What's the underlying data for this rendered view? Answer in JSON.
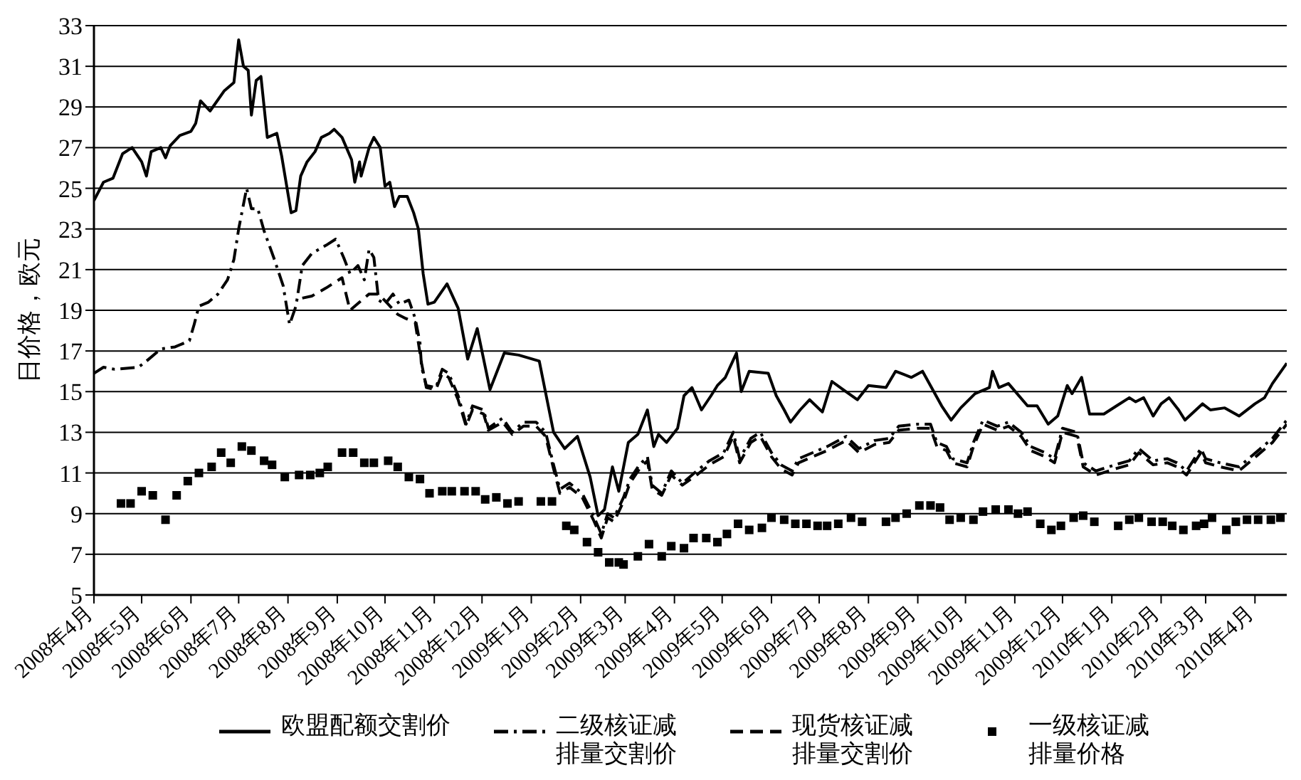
{
  "chart_data": {
    "type": "line",
    "ylabel": "日价格，欧元",
    "xlim": [
      "2008-04-01",
      "2010-04-21"
    ],
    "xticks": [
      {
        "value": "2008-04",
        "label": "2008年4月"
      },
      {
        "value": "2008-05",
        "label": "2008年5月"
      },
      {
        "value": "2008-06",
        "label": "2008年6月"
      },
      {
        "value": "2008-07",
        "label": "2008年7月"
      },
      {
        "value": "2008-08",
        "label": "2008年8月"
      },
      {
        "value": "2008-09",
        "label": "2008年9月"
      },
      {
        "value": "2008-10",
        "label": "2008年10月"
      },
      {
        "value": "2008-11",
        "label": "2008年11月"
      },
      {
        "value": "2008-12",
        "label": "2008年12月"
      },
      {
        "value": "2009-01",
        "label": "2009年1月"
      },
      {
        "value": "2009-02",
        "label": "2009年2月"
      },
      {
        "value": "2009-03",
        "label": "2009年3月"
      },
      {
        "value": "2009-04",
        "label": "2009年4月"
      },
      {
        "value": "2009-05",
        "label": "2009年5月"
      },
      {
        "value": "2009-06",
        "label": "2009年6月"
      },
      {
        "value": "2009-07",
        "label": "2009年7月"
      },
      {
        "value": "2009-08",
        "label": "2009年8月"
      },
      {
        "value": "2009-09",
        "label": "2009年9月"
      },
      {
        "value": "2009-10",
        "label": "2009年10月"
      },
      {
        "value": "2009-11",
        "label": "2009年11月"
      },
      {
        "value": "2009-12",
        "label": "2009年12月"
      },
      {
        "value": "2010-01",
        "label": "2010年1月"
      },
      {
        "value": "2010-02",
        "label": "2010年2月"
      },
      {
        "value": "2010-03",
        "label": "2010年3月"
      },
      {
        "value": "2010-04",
        "label": "2010年4月"
      }
    ],
    "ylim": [
      5,
      33
    ],
    "yticks": [
      5,
      7,
      9,
      11,
      13,
      15,
      17,
      19,
      21,
      23,
      25,
      27,
      29,
      31,
      33
    ],
    "grid": "y",
    "legend": "bottom",
    "series": [
      {
        "name": "欧盟配额交割价",
        "line_style": "solid",
        "color": "#000000",
        "x": [
          "2008-04-01",
          "2008-04-07",
          "2008-04-13",
          "2008-04-19",
          "2008-04-25",
          "2008-05-01",
          "2008-05-04",
          "2008-05-07",
          "2008-05-13",
          "2008-05-16",
          "2008-05-19",
          "2008-05-25",
          "2008-06-01",
          "2008-06-04",
          "2008-06-07",
          "2008-06-13",
          "2008-06-22",
          "2008-06-28",
          "2008-07-01",
          "2008-07-04",
          "2008-07-07",
          "2008-07-09",
          "2008-07-12",
          "2008-07-15",
          "2008-07-19",
          "2008-07-25",
          "2008-07-28",
          "2008-08-03",
          "2008-08-06",
          "2008-08-09",
          "2008-08-13",
          "2008-08-18",
          "2008-08-22",
          "2008-08-27",
          "2008-08-30",
          "2008-09-04",
          "2008-09-10",
          "2008-09-12",
          "2008-09-15",
          "2008-09-16",
          "2008-09-21",
          "2008-09-24",
          "2008-09-28",
          "2008-10-01",
          "2008-10-04",
          "2008-10-07",
          "2008-10-10",
          "2008-10-15",
          "2008-10-19",
          "2008-10-22",
          "2008-10-25",
          "2008-10-28",
          "2008-11-01",
          "2008-11-09",
          "2008-11-16",
          "2008-11-22",
          "2008-11-28",
          "2008-12-06",
          "2008-12-15",
          "2008-12-24",
          "2009-01-06",
          "2009-01-15",
          "2009-01-22",
          "2009-01-30",
          "2009-02-07",
          "2009-02-12",
          "2009-02-16",
          "2009-02-21",
          "2009-02-25",
          "2009-03-03",
          "2009-03-09",
          "2009-03-15",
          "2009-03-19",
          "2009-03-22",
          "2009-03-27",
          "2009-04-03",
          "2009-04-07",
          "2009-04-12",
          "2009-04-18",
          "2009-04-24",
          "2009-04-28",
          "2009-05-03",
          "2009-05-10",
          "2009-05-13",
          "2009-05-18",
          "2009-05-30",
          "2009-06-04",
          "2009-06-09",
          "2009-06-13",
          "2009-06-19",
          "2009-06-25",
          "2009-07-03",
          "2009-07-09",
          "2009-07-16",
          "2009-07-25",
          "2009-08-01",
          "2009-08-12",
          "2009-08-18",
          "2009-08-28",
          "2009-09-04",
          "2009-09-16",
          "2009-09-22",
          "2009-09-28",
          "2009-10-07",
          "2009-10-16",
          "2009-10-18",
          "2009-10-22",
          "2009-10-28",
          "2009-11-09",
          "2009-11-15",
          "2009-11-22",
          "2009-11-28",
          "2009-12-04",
          "2009-12-07",
          "2009-12-13",
          "2009-12-18",
          "2009-12-27",
          "2010-01-04",
          "2010-01-12",
          "2010-01-16",
          "2010-01-21",
          "2010-01-27",
          "2010-02-01",
          "2010-02-06",
          "2010-02-12",
          "2010-02-16",
          "2010-02-27",
          "2010-03-04",
          "2010-03-13",
          "2010-03-22",
          "2010-04-01",
          "2010-04-07",
          "2010-04-12",
          "2010-04-21"
        ],
        "values": [
          24.4,
          25.3,
          25.5,
          26.7,
          27,
          26.3,
          25.6,
          26.8,
          27,
          26.5,
          27.1,
          27.6,
          27.8,
          28.2,
          29.3,
          28.8,
          29.8,
          30.2,
          32.3,
          31,
          30.8,
          28.6,
          30.3,
          30.5,
          27.5,
          27.7,
          26.6,
          23.8,
          23.9,
          25.6,
          26.3,
          26.8,
          27.5,
          27.7,
          27.9,
          27.5,
          26.4,
          25.3,
          26.3,
          25.6,
          27,
          27.5,
          27,
          25.1,
          25.3,
          24.1,
          24.6,
          24.6,
          23.8,
          23,
          20.8,
          19.3,
          19.4,
          20.3,
          19.1,
          16.6,
          18.1,
          15.1,
          16.9,
          16.8,
          16.5,
          13,
          12.2,
          12.8,
          10.8,
          8.9,
          9.2,
          11.3,
          10.1,
          12.5,
          12.9,
          14.1,
          12.3,
          12.9,
          12.5,
          13.2,
          14.8,
          15.2,
          14.1,
          14.8,
          15.3,
          15.7,
          16.9,
          15,
          16,
          15.9,
          14.8,
          14.1,
          13.5,
          14.1,
          14.6,
          14,
          15.5,
          15.1,
          14.6,
          15.3,
          15.2,
          16,
          15.7,
          16,
          14.3,
          13.6,
          14.2,
          14.9,
          15.2,
          16,
          15.2,
          15.4,
          14.3,
          14.3,
          13.4,
          13.8,
          15.3,
          14.9,
          15.7,
          13.9,
          13.9,
          14.3,
          14.7,
          14.5,
          14.7,
          13.8,
          14.4,
          14.7,
          14.1,
          13.6,
          14.4,
          14.1,
          14.2,
          13.8,
          14.4,
          14.7,
          15.4,
          16.4
        ]
      },
      {
        "name": "二级核证减排量交割价",
        "line_style": "dashdot",
        "color": "#000000",
        "x": [
          "2008-04-01",
          "2008-04-07",
          "2008-04-14",
          "2008-04-29",
          "2008-05-04",
          "2008-05-13",
          "2008-05-22",
          "2008-05-31",
          "2008-06-03",
          "2008-06-06",
          "2008-06-12",
          "2008-06-18",
          "2008-06-24",
          "2008-06-28",
          "2008-07-01",
          "2008-07-06",
          "2008-07-09",
          "2008-07-13",
          "2008-07-17",
          "2008-07-23",
          "2008-07-29",
          "2008-08-02",
          "2008-08-06",
          "2008-08-10",
          "2008-08-16",
          "2008-08-25",
          "2008-08-31",
          "2008-09-05",
          "2008-09-09",
          "2008-09-14",
          "2008-09-18",
          "2008-09-21",
          "2008-09-24",
          "2008-09-27",
          "2008-10-01",
          "2008-10-06",
          "2008-10-10",
          "2008-10-16",
          "2008-10-20",
          "2008-10-23",
          "2008-10-24",
          "2008-10-27",
          "2008-11-02",
          "2008-11-06",
          "2008-11-10",
          "2008-11-16",
          "2008-11-21",
          "2008-11-25",
          "2008-12-02",
          "2008-12-05",
          "2008-12-14",
          "2008-12-20",
          "2008-12-27",
          "2009-01-04",
          "2009-01-10",
          "2009-01-15",
          "2009-01-19",
          "2009-01-25",
          "2009-02-02",
          "2009-02-09",
          "2009-02-14",
          "2009-02-18",
          "2009-02-22",
          "2009-02-28",
          "2009-03-04",
          "2009-03-10",
          "2009-03-15",
          "2009-03-18",
          "2009-03-24",
          "2009-03-30",
          "2009-04-06",
          "2009-04-15",
          "2009-04-23",
          "2009-05-02",
          "2009-05-08",
          "2009-05-12",
          "2009-05-19",
          "2009-05-25",
          "2009-06-01",
          "2009-06-07",
          "2009-06-14",
          "2009-06-18",
          "2009-06-27",
          "2009-07-06",
          "2009-07-18",
          "2009-07-26",
          "2009-08-05",
          "2009-08-14",
          "2009-08-20",
          "2009-09-01",
          "2009-09-09",
          "2009-09-13",
          "2009-09-19",
          "2009-09-23",
          "2009-10-02",
          "2009-10-06",
          "2009-10-12",
          "2009-10-21",
          "2009-10-28",
          "2009-11-05",
          "2009-11-11",
          "2009-11-20",
          "2009-11-26",
          "2009-12-01",
          "2009-12-10",
          "2009-12-14",
          "2009-12-22",
          "2010-01-03",
          "2010-01-12",
          "2010-01-18",
          "2010-01-27",
          "2010-02-05",
          "2010-02-11",
          "2010-02-17",
          "2010-02-26",
          "2010-03-01",
          "2010-03-10",
          "2010-03-22",
          "2010-04-03",
          "2010-04-12",
          "2010-04-21"
        ],
        "values": [
          15.9,
          16.2,
          16.1,
          16.2,
          16.5,
          17.1,
          17.2,
          17.5,
          18.3,
          19.2,
          19.4,
          19.8,
          20.5,
          21.5,
          23,
          25,
          24,
          24,
          22.9,
          21.6,
          20.2,
          18.3,
          19.2,
          21.2,
          21.8,
          22.2,
          22.5,
          21.6,
          20.8,
          21.2,
          20.5,
          22,
          21.6,
          19.5,
          19.3,
          19.8,
          19.3,
          19.5,
          18.6,
          17.4,
          16.2,
          15.3,
          15.2,
          16.1,
          15.9,
          14.8,
          13.4,
          14.3,
          14.1,
          13.2,
          13.7,
          13,
          13.5,
          13.5,
          13,
          11.4,
          10.2,
          10.5,
          10,
          8.9,
          8,
          9,
          8.8,
          9.8,
          10.7,
          11.4,
          11.8,
          10.4,
          10,
          11.1,
          10.5,
          11.1,
          11.6,
          12,
          13,
          11.7,
          12.7,
          13,
          12,
          11.4,
          11.1,
          11.7,
          12,
          12.3,
          12.8,
          12.2,
          12.6,
          12.7,
          13.3,
          13.4,
          13.4,
          12.5,
          12.3,
          11.7,
          11.5,
          12.5,
          13.6,
          13.3,
          13.5,
          13,
          12.3,
          12,
          11.7,
          13.2,
          13,
          11.5,
          11.1,
          11.4,
          11.6,
          12.2,
          11.6,
          11.7,
          11.5,
          11.1,
          12.2,
          11.7,
          11.5,
          11.3,
          12.1,
          12.7,
          13.6
        ]
      },
      {
        "name": "现货核证减排量交割价",
        "line_style": "dashed",
        "color": "#000000",
        "x": [
          "2008-08-10",
          "2008-08-16",
          "2008-08-25",
          "2008-09-04",
          "2008-09-09",
          "2008-09-15",
          "2008-09-21",
          "2008-09-27",
          "2008-10-03",
          "2008-10-09",
          "2008-10-14",
          "2008-10-20",
          "2008-10-24",
          "2008-10-27",
          "2008-11-02",
          "2008-11-06",
          "2008-11-10",
          "2008-11-16",
          "2008-11-21",
          "2008-11-25",
          "2008-12-02",
          "2008-12-05",
          "2008-12-14",
          "2008-12-20",
          "2008-12-27",
          "2009-01-04",
          "2009-01-10",
          "2009-01-15",
          "2009-01-19",
          "2009-01-25",
          "2009-02-02",
          "2009-02-09",
          "2009-02-14",
          "2009-02-18",
          "2009-02-22",
          "2009-02-28",
          "2009-03-04",
          "2009-03-10",
          "2009-03-15",
          "2009-03-18",
          "2009-03-24",
          "2009-03-30",
          "2009-04-06",
          "2009-04-15",
          "2009-04-23",
          "2009-05-02",
          "2009-05-08",
          "2009-05-12",
          "2009-05-19",
          "2009-05-25",
          "2009-06-01",
          "2009-06-07",
          "2009-06-14",
          "2009-06-18",
          "2009-06-27",
          "2009-07-06",
          "2009-07-18",
          "2009-07-26",
          "2009-08-05",
          "2009-08-14",
          "2009-08-20",
          "2009-09-01",
          "2009-09-09",
          "2009-09-13",
          "2009-09-19",
          "2009-09-23",
          "2009-10-02",
          "2009-10-06",
          "2009-10-12",
          "2009-10-21",
          "2009-10-28",
          "2009-11-05",
          "2009-11-11",
          "2009-11-20",
          "2009-11-26",
          "2009-12-01",
          "2009-12-10",
          "2009-12-14",
          "2009-12-22",
          "2010-01-03",
          "2010-01-12",
          "2010-01-18",
          "2010-01-27",
          "2010-02-05",
          "2010-02-11",
          "2010-02-17",
          "2010-02-26",
          "2010-03-01",
          "2010-03-10",
          "2010-03-22",
          "2010-04-03",
          "2010-04-12",
          "2010-04-21"
        ],
        "values": [
          19.6,
          19.7,
          20.1,
          20.6,
          19,
          19.4,
          19.8,
          19.8,
          19.3,
          18.8,
          18.6,
          18.4,
          16.4,
          15.2,
          15.1,
          15.9,
          15.7,
          14.6,
          13.3,
          14.1,
          13.9,
          13.1,
          13.5,
          12.9,
          13.3,
          13.3,
          12.8,
          11.2,
          10.0,
          10.3,
          9.8,
          8.7,
          7.8,
          8.8,
          8.6,
          9.6,
          10.5,
          11.2,
          11.6,
          10.2,
          9.9,
          10.9,
          10.4,
          10.9,
          11.4,
          11.8,
          12.8,
          11.5,
          12.5,
          12.8,
          11.8,
          11.2,
          10.9,
          11.5,
          11.8,
          12.1,
          12.6,
          12.0,
          12.4,
          12.5,
          13.1,
          13.2,
          13.2,
          12.3,
          12.1,
          11.5,
          11.3,
          12.3,
          13.4,
          13.1,
          13.3,
          12.8,
          12.1,
          11.8,
          11.5,
          13.0,
          12.8,
          11.3,
          10.9,
          11.2,
          11.4,
          12.0,
          11.4,
          11.5,
          11.3,
          10.9,
          12.0,
          11.5,
          11.3,
          11.1,
          11.9,
          12.5,
          13.4
        ]
      },
      {
        "name": "一级核证减排量价格",
        "type": "scatter",
        "marker": "square",
        "color": "#000000",
        "x": [
          "2008-04-18",
          "2008-04-24",
          "2008-05-01",
          "2008-05-08",
          "2008-05-16",
          "2008-05-23",
          "2008-05-30",
          "2008-06-06",
          "2008-06-14",
          "2008-06-20",
          "2008-06-26",
          "2008-07-03",
          "2008-07-09",
          "2008-07-17",
          "2008-07-22",
          "2008-07-30",
          "2008-08-08",
          "2008-08-15",
          "2008-08-21",
          "2008-08-26",
          "2008-09-04",
          "2008-09-11",
          "2008-09-18",
          "2008-09-24",
          "2008-10-03",
          "2008-10-09",
          "2008-10-16",
          "2008-10-23",
          "2008-10-29",
          "2008-11-06",
          "2008-11-12",
          "2008-11-20",
          "2008-11-27",
          "2008-12-03",
          "2008-12-10",
          "2008-12-17",
          "2008-12-24",
          "2009-01-07",
          "2009-01-14",
          "2009-01-23",
          "2009-01-28",
          "2009-02-05",
          "2009-02-12",
          "2009-02-19",
          "2009-02-25",
          "2009-02-28",
          "2009-03-09",
          "2009-03-16",
          "2009-03-24",
          "2009-03-30",
          "2009-04-07",
          "2009-04-13",
          "2009-04-21",
          "2009-04-28",
          "2009-05-04",
          "2009-05-11",
          "2009-05-18",
          "2009-05-26",
          "2009-06-01",
          "2009-06-09",
          "2009-06-16",
          "2009-06-23",
          "2009-06-30",
          "2009-07-06",
          "2009-07-13",
          "2009-07-21",
          "2009-07-28",
          "2009-08-12",
          "2009-08-18",
          "2009-08-25",
          "2009-09-02",
          "2009-09-09",
          "2009-09-15",
          "2009-09-21",
          "2009-09-28",
          "2009-10-06",
          "2009-10-12",
          "2009-10-20",
          "2009-10-28",
          "2009-11-03",
          "2009-11-09",
          "2009-11-17",
          "2009-11-24",
          "2009-11-30",
          "2009-12-08",
          "2009-12-14",
          "2009-12-21",
          "2010-01-05",
          "2010-01-12",
          "2010-01-18",
          "2010-01-26",
          "2010-02-02",
          "2010-02-08",
          "2010-02-15",
          "2010-02-23",
          "2010-02-28",
          "2010-03-05",
          "2010-03-14",
          "2010-03-20",
          "2010-03-27",
          "2010-04-03",
          "2010-04-11",
          "2010-04-17"
        ],
        "values": [
          9.5,
          9.5,
          10.1,
          9.9,
          8.7,
          9.9,
          10.6,
          11.0,
          11.3,
          12.0,
          11.5,
          12.3,
          12.1,
          11.6,
          11.4,
          10.8,
          10.9,
          10.9,
          11.0,
          11.3,
          12.0,
          12.0,
          11.5,
          11.5,
          11.6,
          11.3,
          10.8,
          10.7,
          10.0,
          10.1,
          10.1,
          10.1,
          10.1,
          9.7,
          9.8,
          9.5,
          9.6,
          9.6,
          9.6,
          8.4,
          8.2,
          7.6,
          7.1,
          6.6,
          6.6,
          6.5,
          6.9,
          7.5,
          6.9,
          7.4,
          7.3,
          7.8,
          7.8,
          7.6,
          8.0,
          8.5,
          8.2,
          8.3,
          8.8,
          8.7,
          8.5,
          8.5,
          8.4,
          8.4,
          8.5,
          8.8,
          8.6,
          8.6,
          8.8,
          9.0,
          9.4,
          9.4,
          9.3,
          8.7,
          8.8,
          8.7,
          9.1,
          9.2,
          9.2,
          9.0,
          9.1,
          8.5,
          8.2,
          8.4,
          8.8,
          8.9,
          8.6,
          8.4,
          8.7,
          8.8,
          8.6,
          8.6,
          8.4,
          8.2,
          8.4,
          8.5,
          8.8,
          8.2,
          8.6,
          8.7,
          8.7,
          8.7,
          8.8
        ]
      }
    ]
  }
}
